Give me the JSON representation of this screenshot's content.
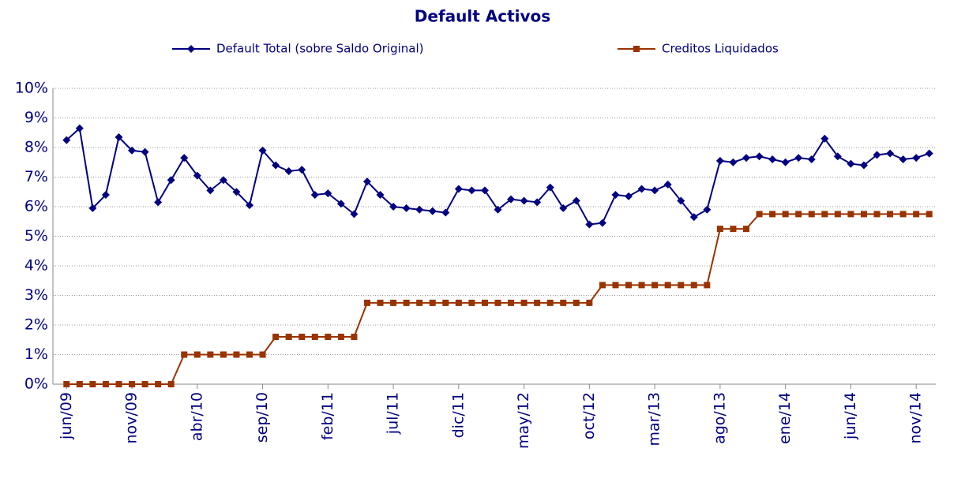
{
  "chart_data": {
    "type": "line",
    "title": "Default Activos",
    "categories": [
      "jun/09",
      null,
      null,
      null,
      null,
      "nov/09",
      null,
      null,
      null,
      null,
      "abr/10",
      null,
      null,
      null,
      null,
      "sep/10",
      null,
      null,
      null,
      null,
      "feb/11",
      null,
      null,
      null,
      null,
      "jul/11",
      null,
      null,
      null,
      null,
      "dic/11",
      null,
      null,
      null,
      null,
      "may/12",
      null,
      null,
      null,
      null,
      "oct/12",
      null,
      null,
      null,
      null,
      "mar/13",
      null,
      null,
      null,
      null,
      "ago/13",
      null,
      null,
      null,
      null,
      "ene/14",
      null,
      null,
      null,
      null,
      "jun/14",
      null,
      null,
      null,
      null,
      "nov/14",
      null
    ],
    "series": [
      {
        "name": "Default Total (sobre Saldo Original)",
        "color": "#000080",
        "marker": "diamond",
        "values": [
          8.25,
          8.65,
          5.95,
          6.4,
          8.35,
          7.9,
          7.85,
          6.15,
          6.9,
          7.65,
          7.05,
          6.55,
          6.9,
          6.5,
          6.05,
          7.9,
          7.4,
          7.2,
          7.25,
          6.4,
          6.45,
          6.1,
          5.75,
          6.85,
          6.4,
          6.0,
          5.95,
          5.9,
          5.85,
          5.8,
          6.6,
          6.55,
          6.55,
          5.9,
          6.25,
          6.2,
          6.15,
          6.65,
          5.95,
          6.2,
          5.4,
          5.45,
          6.4,
          6.35,
          6.6,
          6.55,
          6.75,
          6.2,
          5.65,
          5.9,
          7.55,
          7.5,
          7.65,
          7.7,
          7.6,
          7.5,
          7.65,
          7.6,
          8.3,
          7.7,
          7.45,
          7.4,
          7.75,
          7.8,
          7.6,
          7.65,
          7.8
        ]
      },
      {
        "name": "Creditos Liquidados",
        "color": "#993300",
        "marker": "square",
        "values": [
          0,
          0,
          0,
          0,
          0,
          0,
          0,
          0,
          0,
          1.0,
          1.0,
          1.0,
          1.0,
          1.0,
          1.0,
          1.0,
          1.6,
          1.6,
          1.6,
          1.6,
          1.6,
          1.6,
          1.6,
          2.75,
          2.75,
          2.75,
          2.75,
          2.75,
          2.75,
          2.75,
          2.75,
          2.75,
          2.75,
          2.75,
          2.75,
          2.75,
          2.75,
          2.75,
          2.75,
          2.75,
          2.75,
          3.35,
          3.35,
          3.35,
          3.35,
          3.35,
          3.35,
          3.35,
          3.35,
          3.35,
          5.25,
          5.25,
          5.25,
          5.75,
          5.75,
          5.75,
          5.75,
          5.75,
          5.75,
          5.75,
          5.75,
          5.75,
          5.75,
          5.75,
          5.75,
          5.75,
          5.75
        ]
      }
    ],
    "ylim": [
      0,
      10
    ],
    "yticks": [
      {
        "value": 0,
        "label": "0%"
      },
      {
        "value": 1,
        "label": "1%"
      },
      {
        "value": 2,
        "label": "2%"
      },
      {
        "value": 3,
        "label": "3%"
      },
      {
        "value": 4,
        "label": "4%"
      },
      {
        "value": 5,
        "label": "5%"
      },
      {
        "value": 6,
        "label": "6%"
      },
      {
        "value": 7,
        "label": "7%"
      },
      {
        "value": 8,
        "label": "8%"
      },
      {
        "value": 9,
        "label": "9%"
      },
      {
        "value": 10,
        "label": "10%"
      }
    ],
    "grid": true,
    "legend": "top"
  }
}
